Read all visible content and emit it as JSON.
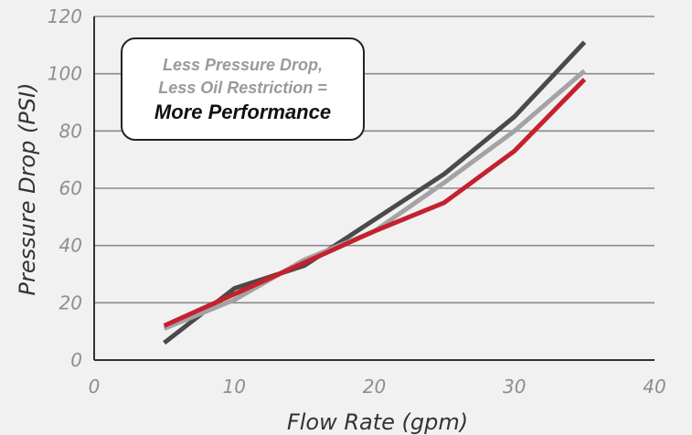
{
  "chart_data": {
    "type": "line",
    "xlabel": "Flow Rate (gpm)",
    "ylabel": "Pressure Drop (PSI)",
    "xlim": [
      0,
      40
    ],
    "ylim": [
      0,
      120
    ],
    "x_ticks": [
      "0",
      "10",
      "20",
      "30",
      "40"
    ],
    "y_ticks": [
      "0",
      "20",
      "40",
      "60",
      "80",
      "100",
      "120"
    ],
    "grid": "horizontal",
    "series": [
      {
        "color": "#4a4a4a",
        "points": [
          [
            5,
            6
          ],
          [
            10,
            25
          ],
          [
            15,
            33
          ],
          [
            20,
            49
          ],
          [
            25,
            65
          ],
          [
            30,
            85
          ],
          [
            35,
            111
          ]
        ]
      },
      {
        "color": "#a3a3a3",
        "points": [
          [
            5,
            11
          ],
          [
            10,
            21
          ],
          [
            15,
            35
          ],
          [
            20,
            45
          ],
          [
            25,
            62
          ],
          [
            30,
            80
          ],
          [
            35,
            101
          ]
        ]
      },
      {
        "color": "#c4212e",
        "points": [
          [
            5,
            12
          ],
          [
            10,
            23
          ],
          [
            15,
            34
          ],
          [
            20,
            45
          ],
          [
            25,
            55
          ],
          [
            30,
            73
          ],
          [
            35,
            98
          ]
        ]
      }
    ]
  },
  "annotation": {
    "line1": "Less Pressure Drop,",
    "line2": "Less Oil Restriction =",
    "line3": "More Performance"
  }
}
